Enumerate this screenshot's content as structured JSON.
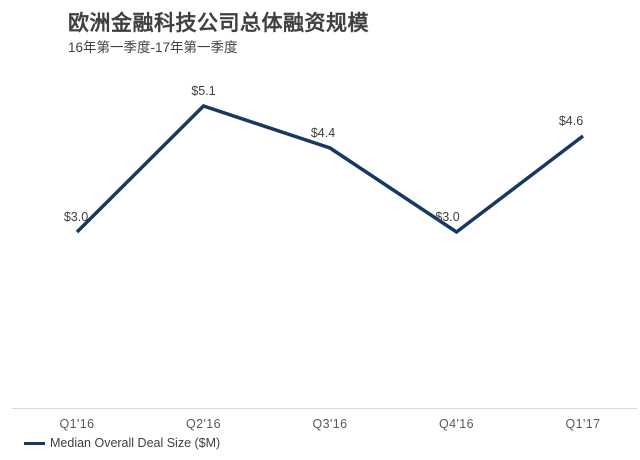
{
  "chart_data": {
    "type": "line",
    "title": "欧洲金融科技公司总体融资规模",
    "subtitle": "16年第一季度-17年第一季度",
    "categories": [
      "Q1'16",
      "Q2'16",
      "Q3'16",
      "Q4'16",
      "Q1'17"
    ],
    "series": [
      {
        "name": "Median Overall Deal Size ($M)",
        "values": [
          3.0,
          5.1,
          4.4,
          3.0,
          4.6
        ],
        "point_labels": [
          "$3.0",
          "$5.1",
          "$4.4",
          "$3.0",
          "$4.6"
        ],
        "color": "#173862"
      }
    ],
    "legend": {
      "position": "bottom-left",
      "entries": [
        "Median Overall Deal Size ($M)"
      ]
    },
    "ylim": [
      0,
      5.5
    ],
    "grid": false,
    "axis_line_color": "#d9d9d9",
    "title_color": "#404040",
    "tick_color": "#595959",
    "background": "#ffffff"
  }
}
